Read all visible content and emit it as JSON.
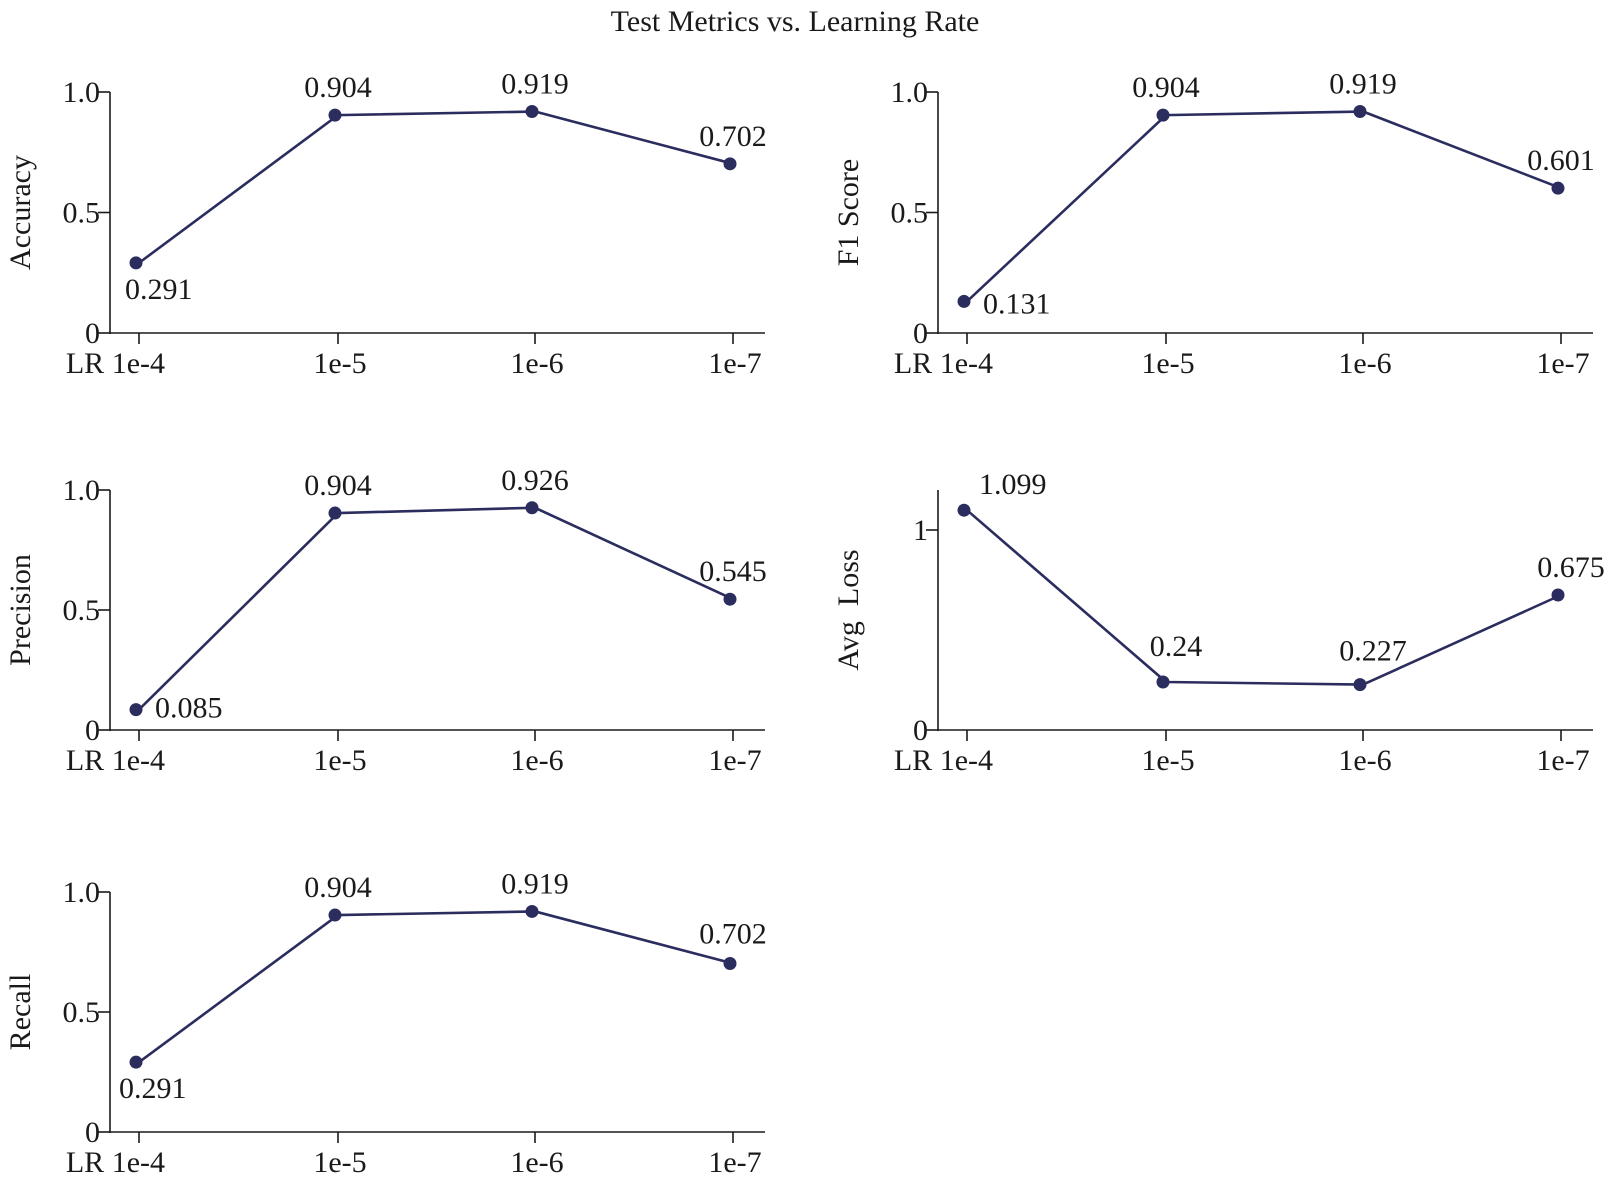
{
  "figure_title": "Test Metrics vs. Learning Rate",
  "colors": {
    "series": "#2b2d5e",
    "axis": "#1a1a1a"
  },
  "chart_data": [
    {
      "type": "line",
      "ylabel": "Accuracy",
      "categories": [
        "LR 1e-4",
        "1e-5",
        "1e-6",
        "1e-7"
      ],
      "values": [
        0.291,
        0.904,
        0.919,
        0.702
      ],
      "labels": [
        "0.291",
        "0.904",
        "0.919",
        "0.702"
      ],
      "ylim": [
        0,
        1.0
      ],
      "yticks": [
        0,
        0.5,
        1.0
      ],
      "ytick_labels": [
        "0",
        "0.5",
        "1.0"
      ],
      "grid": false
    },
    {
      "type": "line",
      "ylabel": "F1 Score",
      "categories": [
        "LR 1e-4",
        "1e-5",
        "1e-6",
        "1e-7"
      ],
      "values": [
        0.131,
        0.904,
        0.919,
        0.601
      ],
      "labels": [
        "0.131",
        "0.904",
        "0.919",
        "0.601"
      ],
      "ylim": [
        0,
        1.0
      ],
      "yticks": [
        0,
        0.5,
        1.0
      ],
      "ytick_labels": [
        "0",
        "0.5",
        "1.0"
      ],
      "grid": false
    },
    {
      "type": "line",
      "ylabel": "Precision",
      "categories": [
        "LR 1e-4",
        "1e-5",
        "1e-6",
        "1e-7"
      ],
      "values": [
        0.085,
        0.904,
        0.926,
        0.545
      ],
      "labels": [
        "0.085",
        "0.904",
        "0.926",
        "0.545"
      ],
      "ylim": [
        0,
        1.0
      ],
      "yticks": [
        0,
        0.5,
        1.0
      ],
      "ytick_labels": [
        "0",
        "0.5",
        "1.0"
      ],
      "grid": false
    },
    {
      "type": "line",
      "ylabel": "Avg  Loss",
      "categories": [
        "LR 1e-4",
        "1e-5",
        "1e-6",
        "1e-7"
      ],
      "values": [
        1.099,
        0.24,
        0.227,
        0.675
      ],
      "labels": [
        "1.099",
        "0.24",
        "0.227",
        "0.675"
      ],
      "ylim": [
        0,
        1.2
      ],
      "yticks": [
        0,
        1
      ],
      "ytick_labels": [
        "0",
        "1"
      ],
      "grid": false
    },
    {
      "type": "line",
      "ylabel": "Recall",
      "categories": [
        "LR 1e-4",
        "1e-5",
        "1e-6",
        "1e-7"
      ],
      "values": [
        0.291,
        0.904,
        0.919,
        0.702
      ],
      "labels": [
        "0.291",
        "0.904",
        "0.919",
        "0.702"
      ],
      "ylim": [
        0,
        1.0
      ],
      "yticks": [
        0,
        0.5,
        1.0
      ],
      "ytick_labels": [
        "0",
        "0.5",
        "1.0"
      ],
      "grid": false
    }
  ]
}
